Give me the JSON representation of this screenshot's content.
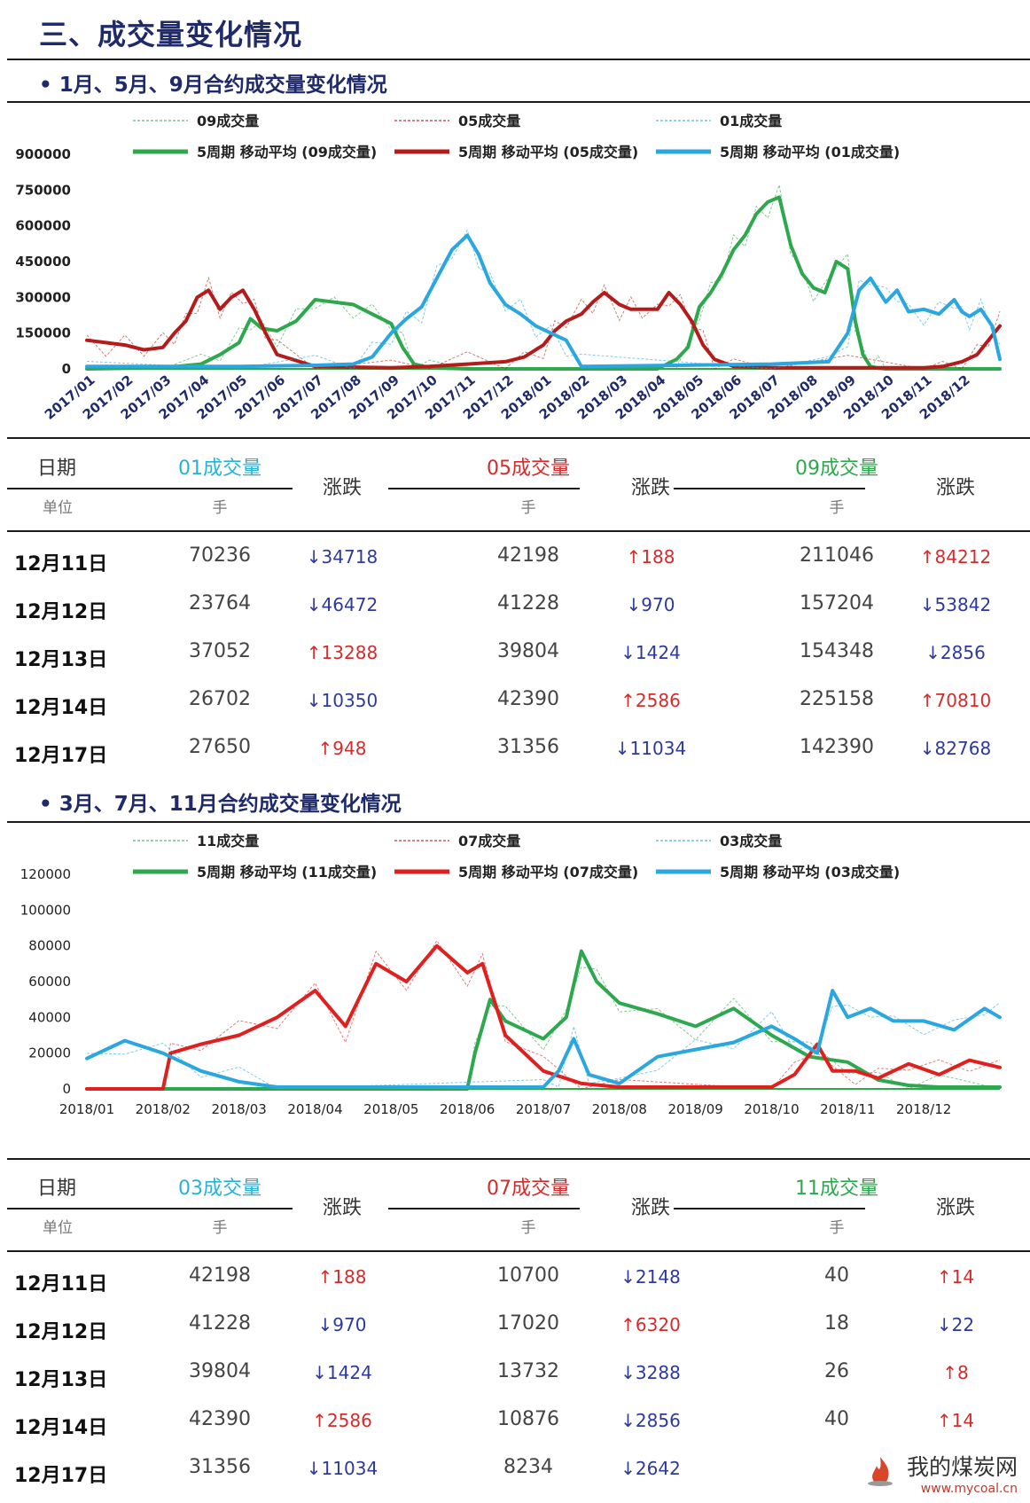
{
  "page_title": "三、成交量变化情况",
  "sections": [
    {
      "title": "• 1月、5月、9月合约成交量变化情况",
      "legend": [
        {
          "label": "09成交量",
          "color": "#5fb37a",
          "style": "dashed"
        },
        {
          "label": "05成交量",
          "color": "#b03a3a",
          "style": "dashed"
        },
        {
          "label": "01成交量",
          "color": "#4fb8d8",
          "style": "dashed"
        },
        {
          "label": "5周期 移动平均 (09成交量)",
          "color": "#2ea84d",
          "style": "solid"
        },
        {
          "label": "5周期 移动平均 (05成交量)",
          "color": "#b41c1c",
          "style": "solid"
        },
        {
          "label": "5周期 移动平均 (01成交量)",
          "color": "#2ba7e0",
          "style": "solid"
        }
      ],
      "table": {
        "date_header": "日期",
        "unit_header": "单位",
        "change_header": "涨跌",
        "series": [
          {
            "name": "01成交量",
            "unit": "手",
            "color_class": "c-01"
          },
          {
            "name": "05成交量",
            "unit": "手",
            "color_class": "c-05"
          },
          {
            "name": "09成交量",
            "unit": "手",
            "color_class": "c-09"
          }
        ],
        "rows": [
          {
            "date": "12月11日",
            "cells": [
              {
                "v": "70236",
                "c": "↓34718",
                "d": "down"
              },
              {
                "v": "42198",
                "c": "↑188",
                "d": "up"
              },
              {
                "v": "211046",
                "c": "↑84212",
                "d": "up"
              }
            ]
          },
          {
            "date": "12月12日",
            "cells": [
              {
                "v": "23764",
                "c": "↓46472",
                "d": "down"
              },
              {
                "v": "41228",
                "c": "↓970",
                "d": "down"
              },
              {
                "v": "157204",
                "c": "↓53842",
                "d": "down"
              }
            ]
          },
          {
            "date": "12月13日",
            "cells": [
              {
                "v": "37052",
                "c": "↑13288",
                "d": "up"
              },
              {
                "v": "39804",
                "c": "↓1424",
                "d": "down"
              },
              {
                "v": "154348",
                "c": "↓2856",
                "d": "down"
              }
            ]
          },
          {
            "date": "12月14日",
            "cells": [
              {
                "v": "26702",
                "c": "↓10350",
                "d": "down"
              },
              {
                "v": "42390",
                "c": "↑2586",
                "d": "up"
              },
              {
                "v": "225158",
                "c": "↑70810",
                "d": "up"
              }
            ]
          },
          {
            "date": "12月17日",
            "cells": [
              {
                "v": "27650",
                "c": "↑948",
                "d": "up"
              },
              {
                "v": "31356",
                "c": "↓11034",
                "d": "down"
              },
              {
                "v": "142390",
                "c": "↓82768",
                "d": "down"
              }
            ]
          }
        ]
      }
    },
    {
      "title": "• 3月、7月、11月合约成交量变化情况",
      "legend": [
        {
          "label": "11成交量",
          "color": "#5fb37a",
          "style": "dashed"
        },
        {
          "label": "07成交量",
          "color": "#c03a3a",
          "style": "dashed"
        },
        {
          "label": "03成交量",
          "color": "#4fb8d8",
          "style": "dashed"
        },
        {
          "label": "5周期 移动平均 (11成交量)",
          "color": "#2ea84d",
          "style": "solid"
        },
        {
          "label": "5周期 移动平均 (07成交量)",
          "color": "#e01f1f",
          "style": "solid"
        },
        {
          "label": "5周期 移动平均 (03成交量)",
          "color": "#2ba7e0",
          "style": "solid"
        }
      ],
      "table": {
        "date_header": "日期",
        "unit_header": "单位",
        "change_header": "涨跌",
        "series": [
          {
            "name": "03成交量",
            "unit": "手",
            "color_class": "c-01"
          },
          {
            "name": "07成交量",
            "unit": "手",
            "color_class": "c-05"
          },
          {
            "name": "11成交量",
            "unit": "手",
            "color_class": "c-09"
          }
        ],
        "rows": [
          {
            "date": "12月11日",
            "cells": [
              {
                "v": "42198",
                "c": "↑188",
                "d": "up"
              },
              {
                "v": "10700",
                "c": "↓2148",
                "d": "down"
              },
              {
                "v": "40",
                "c": "↑14",
                "d": "up"
              }
            ]
          },
          {
            "date": "12月12日",
            "cells": [
              {
                "v": "41228",
                "c": "↓970",
                "d": "down"
              },
              {
                "v": "17020",
                "c": "↑6320",
                "d": "up"
              },
              {
                "v": "18",
                "c": "↓22",
                "d": "down"
              }
            ]
          },
          {
            "date": "12月13日",
            "cells": [
              {
                "v": "39804",
                "c": "↓1424",
                "d": "down"
              },
              {
                "v": "13732",
                "c": "↓3288",
                "d": "down"
              },
              {
                "v": "26",
                "c": "↑8",
                "d": "up"
              }
            ]
          },
          {
            "date": "12月14日",
            "cells": [
              {
                "v": "42390",
                "c": "↑2586",
                "d": "up"
              },
              {
                "v": "10876",
                "c": "↓2856",
                "d": "down"
              },
              {
                "v": "40",
                "c": "↑14",
                "d": "up"
              }
            ]
          },
          {
            "date": "12月17日",
            "cells": [
              {
                "v": "31356",
                "c": "↓11034",
                "d": "down"
              },
              {
                "v": "8234",
                "c": "↓2642",
                "d": "down"
              },
              {
                "v": "",
                "c": "",
                "d": "down"
              }
            ]
          }
        ]
      }
    }
  ],
  "watermark": {
    "name": "我的煤炭网",
    "url": "www.mycoal.cn"
  },
  "chart_data": [
    {
      "type": "line",
      "ylim": [
        0,
        900000
      ],
      "yticks": [
        0,
        150000,
        300000,
        450000,
        600000,
        750000,
        900000
      ],
      "ytick_labels": [
        "0",
        "150000",
        "300000",
        "450000",
        "600000",
        "750000",
        "900000"
      ],
      "x_labels": [
        "2017/01",
        "2017/02",
        "2017/03",
        "2017/04",
        "2017/05",
        "2017/06",
        "2017/07",
        "2017/08",
        "2017/09",
        "2017/10",
        "2017/11",
        "2017/12",
        "2018/01",
        "2018/02",
        "2018/03",
        "2018/04",
        "2018/05",
        "2018/06",
        "2018/07",
        "2018/08",
        "2018/09",
        "2018/10",
        "2018/11",
        "2018/12"
      ],
      "x_range": [
        0,
        24
      ],
      "series": [
        {
          "name": "5周期 移动平均 (09成交量)",
          "color": "#2ea84d",
          "x": [
            0,
            2,
            3,
            3.5,
            4,
            4.3,
            4.6,
            5,
            5.5,
            6,
            6.5,
            7,
            7.5,
            8,
            8.3,
            8.6,
            9,
            10,
            15,
            15.5,
            15.8,
            16.1,
            16.4,
            16.7,
            17,
            17.3,
            17.6,
            17.9,
            18.2,
            18.5,
            18.8,
            19.1,
            19.4,
            19.7,
            20,
            20.2,
            20.4,
            20.6,
            20.8,
            21,
            24
          ],
          "y": [
            0,
            5000,
            20000,
            60000,
            110000,
            210000,
            170000,
            160000,
            200000,
            290000,
            280000,
            270000,
            230000,
            190000,
            90000,
            20000,
            5000,
            0,
            0,
            40000,
            90000,
            260000,
            320000,
            400000,
            500000,
            560000,
            650000,
            700000,
            720000,
            520000,
            400000,
            340000,
            320000,
            450000,
            420000,
            200000,
            60000,
            10000,
            3000,
            0,
            0
          ]
        },
        {
          "name": "5周期 移动平均 (05成交量)",
          "color": "#b41c1c",
          "x": [
            0,
            0.5,
            1,
            1.5,
            2,
            2.3,
            2.6,
            2.9,
            3.2,
            3.5,
            3.8,
            4.1,
            4.4,
            4.7,
            5,
            6,
            8,
            9,
            10,
            11,
            11.5,
            12,
            12.3,
            12.6,
            13,
            13.3,
            13.6,
            14,
            14.3,
            14.6,
            15,
            15.3,
            15.6,
            15.9,
            16.2,
            16.5,
            17,
            18,
            20,
            22,
            22.5,
            23,
            23.4,
            23.7,
            24
          ],
          "y": [
            120000,
            110000,
            100000,
            80000,
            90000,
            150000,
            200000,
            300000,
            330000,
            250000,
            300000,
            330000,
            250000,
            150000,
            60000,
            10000,
            5000,
            10000,
            20000,
            30000,
            50000,
            100000,
            160000,
            200000,
            230000,
            280000,
            320000,
            270000,
            250000,
            250000,
            250000,
            320000,
            270000,
            200000,
            100000,
            40000,
            10000,
            5000,
            5000,
            5000,
            10000,
            30000,
            60000,
            120000,
            180000
          ]
        },
        {
          "name": "5周期 移动平均 (01成交量)",
          "color": "#2ba7e0",
          "x": [
            0,
            4,
            6,
            7,
            7.5,
            8,
            8.4,
            8.8,
            9.2,
            9.6,
            10,
            10.3,
            10.6,
            11,
            11.4,
            11.8,
            12.2,
            12.6,
            13,
            18,
            19.5,
            20,
            20.3,
            20.6,
            21,
            21.3,
            21.6,
            22,
            22.4,
            22.8,
            23,
            23.2,
            23.5,
            23.8,
            24
          ],
          "y": [
            10000,
            10000,
            15000,
            20000,
            50000,
            150000,
            210000,
            260000,
            380000,
            500000,
            560000,
            480000,
            360000,
            270000,
            230000,
            180000,
            150000,
            120000,
            10000,
            20000,
            30000,
            150000,
            330000,
            380000,
            280000,
            330000,
            240000,
            250000,
            230000,
            290000,
            240000,
            220000,
            250000,
            180000,
            40000
          ]
        }
      ]
    },
    {
      "type": "line",
      "ylim": [
        0,
        120000
      ],
      "yticks": [
        0,
        20000,
        40000,
        60000,
        80000,
        100000,
        120000
      ],
      "ytick_labels": [
        "0",
        "20000",
        "40000",
        "60000",
        "80000",
        "100000",
        "120000"
      ],
      "x_labels": [
        "2018/01",
        "2018/02",
        "2018/03",
        "2018/04",
        "2018/05",
        "2018/06",
        "2018/07",
        "2018/08",
        "2018/09",
        "2018/10",
        "2018/11",
        "2018/12"
      ],
      "x_range": [
        0,
        12
      ],
      "series": [
        {
          "name": "5周期 移动平均 (11成交量)",
          "color": "#2ea84d",
          "x": [
            0,
            5,
            5.1,
            5.3,
            5.5,
            6,
            6.3,
            6.5,
            6.7,
            7,
            7.5,
            8,
            8.5,
            9,
            9.5,
            10,
            10.4,
            10.8,
            11.2,
            12
          ],
          "y": [
            0,
            0,
            20000,
            50000,
            38000,
            28000,
            40000,
            77000,
            60000,
            48000,
            42000,
            35000,
            45000,
            30000,
            18000,
            15000,
            5000,
            2000,
            1000,
            1000
          ]
        },
        {
          "name": "5周期 移动平均 (07成交量)",
          "color": "#e01f1f",
          "x": [
            0,
            1,
            1.1,
            1.5,
            2,
            2.5,
            3,
            3.4,
            3.8,
            4.2,
            4.6,
            5,
            5.2,
            5.5,
            6,
            6.5,
            7,
            9,
            9.3,
            9.6,
            9.8,
            10.1,
            10.4,
            10.8,
            11.2,
            11.6,
            12
          ],
          "y": [
            0,
            0,
            20000,
            25000,
            30000,
            40000,
            55000,
            35000,
            70000,
            60000,
            80000,
            65000,
            70000,
            30000,
            10000,
            3000,
            1000,
            1000,
            8000,
            25000,
            10000,
            10000,
            6000,
            14000,
            8000,
            16000,
            12000
          ]
        },
        {
          "name": "5周期 移动平均 (03成交量)",
          "color": "#2ba7e0",
          "x": [
            0,
            0.5,
            1,
            1.5,
            2,
            2.5,
            6,
            6.2,
            6.4,
            6.6,
            7,
            7.5,
            8,
            8.5,
            9,
            9.3,
            9.6,
            9.8,
            10,
            10.3,
            10.6,
            11,
            11.4,
            11.8,
            12
          ],
          "y": [
            17000,
            27000,
            20000,
            10000,
            4000,
            1000,
            1000,
            10000,
            28000,
            8000,
            3000,
            18000,
            22000,
            26000,
            35000,
            28000,
            20000,
            55000,
            40000,
            45000,
            38000,
            38000,
            33000,
            45000,
            40000
          ]
        }
      ]
    }
  ]
}
